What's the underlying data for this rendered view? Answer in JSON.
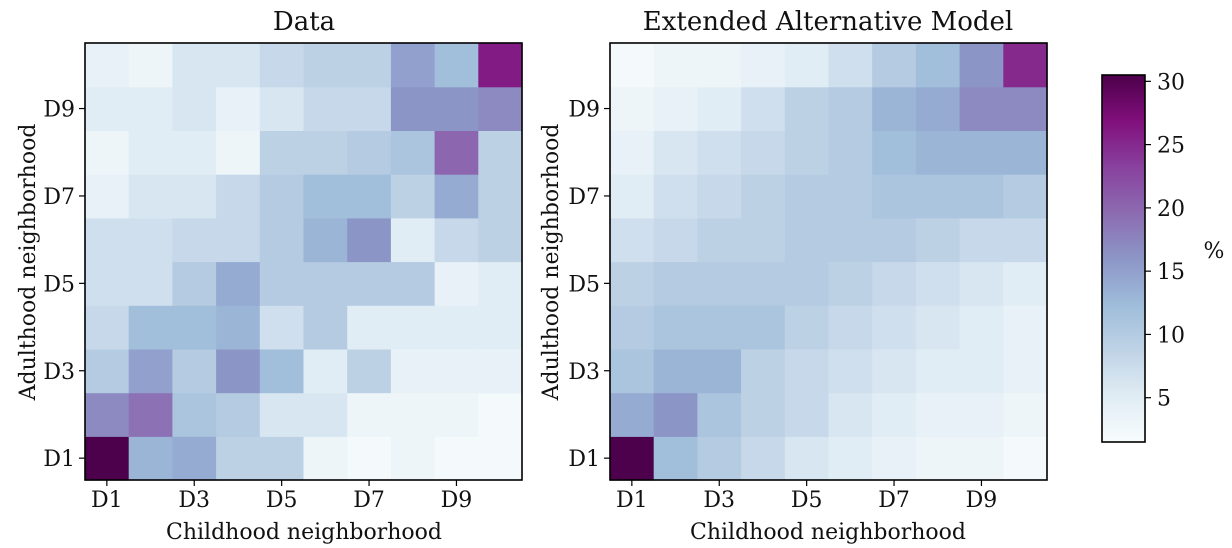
{
  "chart_data": [
    {
      "type": "heatmap",
      "title": "Data",
      "xlabel": "Childhood neighborhood",
      "ylabel": "Adulthood neighborhood",
      "x_categories": [
        "D1",
        "D2",
        "D3",
        "D4",
        "D5",
        "D6",
        "D7",
        "D8",
        "D9",
        "D10"
      ],
      "y_categories": [
        "D1",
        "D2",
        "D3",
        "D4",
        "D5",
        "D6",
        "D7",
        "D8",
        "D9",
        "D10"
      ],
      "x_tick_labels": [
        "D1",
        "D3",
        "D5",
        "D7",
        "D9"
      ],
      "y_tick_labels": [
        "D1",
        "D3",
        "D5",
        "D7",
        "D9"
      ],
      "values": [
        [
          31,
          13,
          14,
          9,
          9,
          3,
          2,
          3,
          2,
          2
        ],
        [
          17,
          19,
          11,
          10,
          6,
          6,
          3,
          3,
          3,
          2
        ],
        [
          10,
          15,
          10,
          16,
          12,
          5,
          9,
          4,
          4,
          4
        ],
        [
          8,
          12,
          12,
          13,
          7,
          10,
          5,
          5,
          5,
          5
        ],
        [
          7,
          7,
          10,
          14,
          10,
          10,
          10,
          10,
          4,
          5
        ],
        [
          7,
          7,
          8,
          8,
          10,
          13,
          16,
          5,
          8,
          9
        ],
        [
          4,
          6,
          6,
          8,
          10,
          12,
          12,
          9,
          14,
          9
        ],
        [
          3,
          5,
          5,
          3,
          9,
          9,
          10,
          11,
          20,
          9
        ],
        [
          5,
          5,
          6,
          4,
          6,
          8,
          8,
          16,
          16,
          17
        ],
        [
          4,
          3,
          6,
          6,
          8,
          9,
          9,
          15,
          12,
          26
        ]
      ]
    },
    {
      "type": "heatmap",
      "title": "Extended Alternative Model",
      "xlabel": "Childhood neighborhood",
      "ylabel": "Adulthood neighborhood",
      "x_categories": [
        "D1",
        "D2",
        "D3",
        "D4",
        "D5",
        "D6",
        "D7",
        "D8",
        "D9",
        "D10"
      ],
      "y_categories": [
        "D1",
        "D2",
        "D3",
        "D4",
        "D5",
        "D6",
        "D7",
        "D8",
        "D9",
        "D10"
      ],
      "x_tick_labels": [
        "D1",
        "D3",
        "D5",
        "D7",
        "D9"
      ],
      "y_tick_labels": [
        "D1",
        "D3",
        "D5",
        "D7",
        "D9"
      ],
      "values": [
        [
          31,
          12,
          10,
          8,
          6,
          5,
          4,
          3,
          3,
          2
        ],
        [
          14,
          16,
          11,
          9,
          8,
          6,
          5,
          4,
          4,
          3
        ],
        [
          11,
          13,
          13,
          9,
          8,
          7,
          6,
          5,
          5,
          4
        ],
        [
          10,
          11,
          11,
          11,
          9,
          8,
          7,
          6,
          5,
          4
        ],
        [
          9,
          10,
          10,
          10,
          10,
          9,
          8,
          7,
          6,
          5
        ],
        [
          7,
          8,
          9,
          9,
          10,
          10,
          10,
          9,
          8,
          8
        ],
        [
          5,
          7,
          8,
          9,
          10,
          10,
          11,
          11,
          11,
          10
        ],
        [
          4,
          6,
          7,
          8,
          9,
          10,
          12,
          13,
          13,
          13
        ],
        [
          3,
          4,
          5,
          7,
          9,
          10,
          13,
          14,
          17,
          17
        ],
        [
          2,
          3,
          3,
          4,
          5,
          7,
          10,
          12,
          16,
          25
        ]
      ]
    }
  ],
  "colorbar": {
    "label": "%",
    "min": 1.5,
    "max": 30.5,
    "ticks": [
      5,
      10,
      15,
      20,
      25,
      30
    ],
    "stops": [
      "#f7fcfd",
      "#e0ecf4",
      "#bfd3e6",
      "#9ebcda",
      "#8c96c6",
      "#8c6bb1",
      "#88419d",
      "#810f7c",
      "#4d004b"
    ]
  }
}
